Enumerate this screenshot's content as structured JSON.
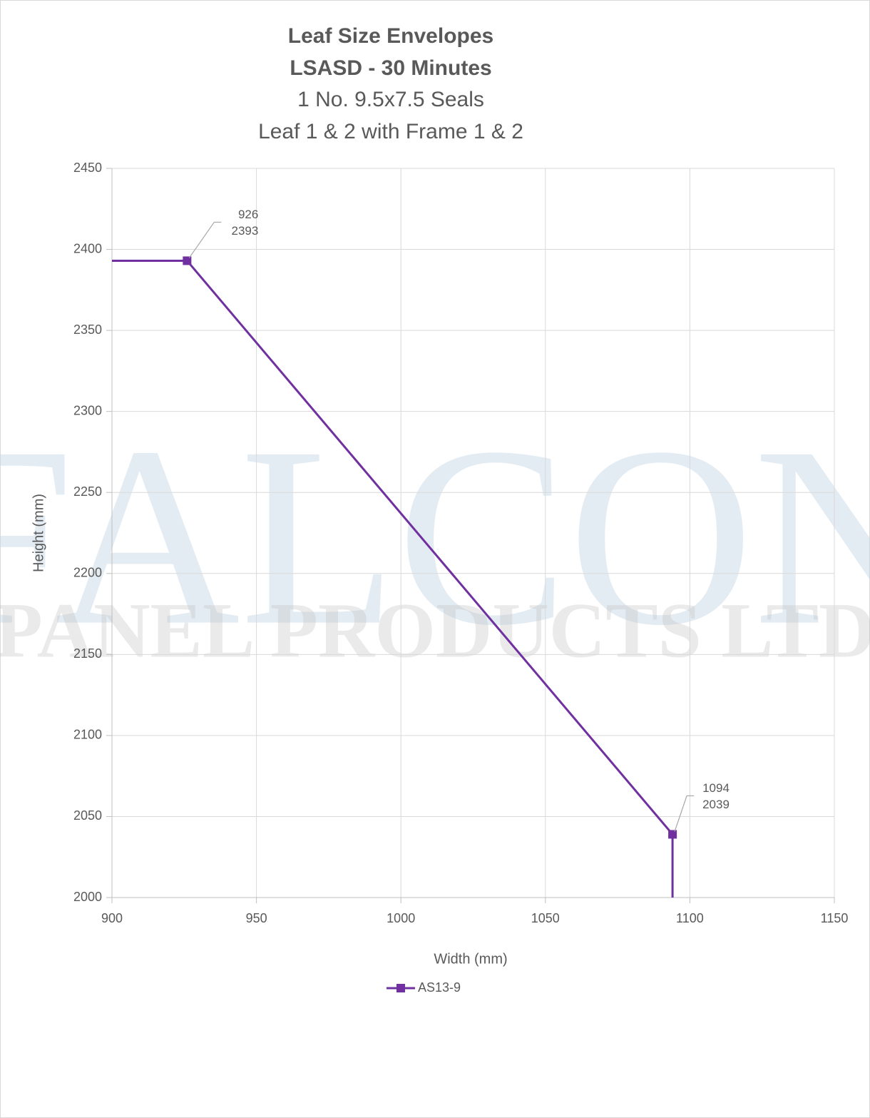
{
  "chart_data": {
    "type": "line",
    "title": "Leaf Size Envelopes",
    "subtitle_bold": "LSASD - 30 Minutes",
    "subtitle_lines": [
      "1 No. 9.5x7.5 Seals",
      "Leaf 1 & 2 with Frame 1 & 2"
    ],
    "xlabel": "Width (mm)",
    "ylabel": "Height (mm)",
    "x": [
      900,
      926,
      1094,
      1094
    ],
    "series": [
      {
        "name": "AS13-9",
        "color": "#7030a0",
        "values": [
          2393,
          2393,
          2039,
          2000
        ]
      }
    ],
    "labeled_points": [
      1,
      2
    ],
    "xlim": [
      900,
      1150
    ],
    "xticks": [
      900,
      950,
      1000,
      1050,
      1100,
      1150
    ],
    "ylim": [
      2000,
      2450
    ],
    "yticks": [
      2000,
      2050,
      2100,
      2150,
      2200,
      2250,
      2300,
      2350,
      2400,
      2450
    ],
    "grid": true,
    "legend": "bottom",
    "watermark": [
      "FALCON",
      "PANEL PRODUCTS LTD"
    ]
  }
}
